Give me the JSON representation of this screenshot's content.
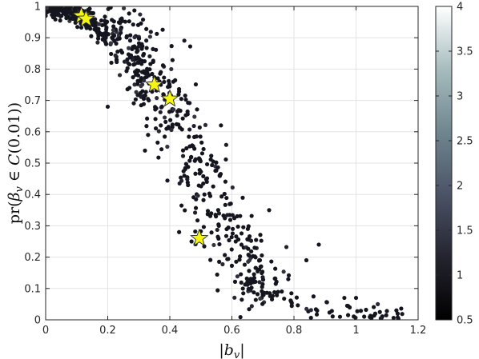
{
  "chart_data": {
    "type": "scatter",
    "xlabel": "|b_v|",
    "ylabel": "pr(β_v ∈ C(0.01))",
    "xlim": [
      0,
      1.2
    ],
    "ylim": [
      0,
      1
    ],
    "xticks": [
      "0",
      "0.2",
      "0.4",
      "0.6",
      "0.8",
      "1",
      "1.2"
    ],
    "yticks": [
      "0",
      "0.1",
      "0.2",
      "0.3",
      "0.4",
      "0.5",
      "0.6",
      "0.7",
      "0.8",
      "0.9",
      "1"
    ],
    "grid": true,
    "point_color": "#15151f",
    "highlight_color": "#f5f50f",
    "highlight_marker": "star",
    "colorbar": {
      "range": [
        0.5,
        4
      ],
      "ticks": [
        "0.5",
        "1",
        "1.5",
        "2",
        "2.5",
        "3",
        "3.5",
        "4"
      ],
      "colormap": "bone"
    },
    "trend": [
      {
        "x": 0.0,
        "y": 0.995
      },
      {
        "x": 0.05,
        "y": 0.99
      },
      {
        "x": 0.1,
        "y": 0.975
      },
      {
        "x": 0.15,
        "y": 0.945
      },
      {
        "x": 0.2,
        "y": 0.91
      },
      {
        "x": 0.25,
        "y": 0.87
      },
      {
        "x": 0.3,
        "y": 0.82
      },
      {
        "x": 0.35,
        "y": 0.76
      },
      {
        "x": 0.4,
        "y": 0.68
      },
      {
        "x": 0.45,
        "y": 0.58
      },
      {
        "x": 0.5,
        "y": 0.47
      },
      {
        "x": 0.55,
        "y": 0.37
      },
      {
        "x": 0.6,
        "y": 0.28
      },
      {
        "x": 0.65,
        "y": 0.2
      },
      {
        "x": 0.7,
        "y": 0.14
      },
      {
        "x": 0.75,
        "y": 0.095
      },
      {
        "x": 0.8,
        "y": 0.065
      },
      {
        "x": 0.85,
        "y": 0.045
      },
      {
        "x": 0.9,
        "y": 0.03
      },
      {
        "x": 1.0,
        "y": 0.015
      },
      {
        "x": 1.15,
        "y": 0.005
      }
    ],
    "points_count": 820,
    "outliers": [
      {
        "x": 0.32,
        "y": 0.54
      },
      {
        "x": 0.33,
        "y": 0.59
      },
      {
        "x": 0.27,
        "y": 0.74
      },
      {
        "x": 0.2,
        "y": 0.68
      },
      {
        "x": 0.43,
        "y": 0.28
      },
      {
        "x": 0.47,
        "y": 0.25
      },
      {
        "x": 0.72,
        "y": 0.35
      },
      {
        "x": 0.88,
        "y": 0.24
      },
      {
        "x": 0.84,
        "y": 0.19
      },
      {
        "x": 1.07,
        "y": 0.05
      },
      {
        "x": 1.13,
        "y": 0.03
      },
      {
        "x": 1.0,
        "y": 0.07
      }
    ],
    "highlights": [
      {
        "x": 0.115,
        "y": 0.97
      },
      {
        "x": 0.13,
        "y": 0.96
      },
      {
        "x": 0.35,
        "y": 0.75
      },
      {
        "x": 0.4,
        "y": 0.705
      },
      {
        "x": 0.495,
        "y": 0.26
      }
    ]
  }
}
